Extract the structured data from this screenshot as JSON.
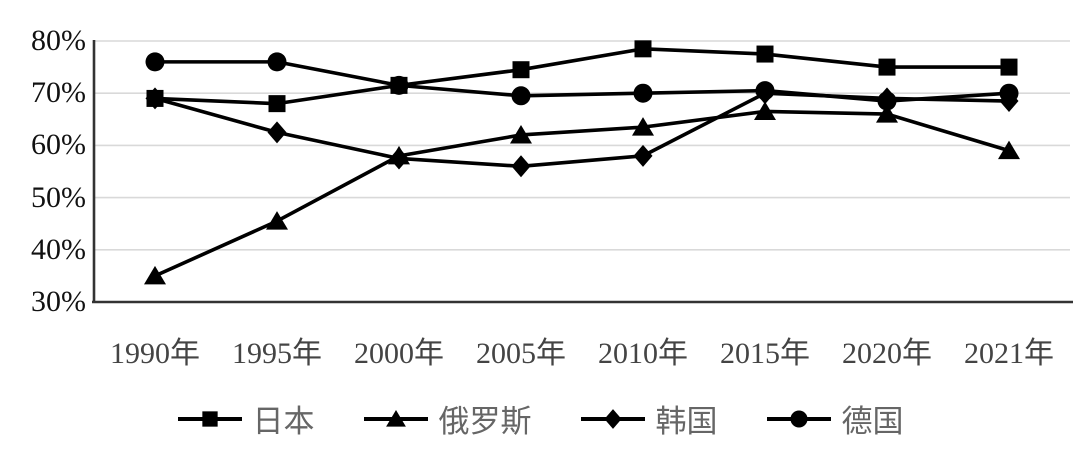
{
  "chart_data": {
    "type": "line",
    "categories": [
      "1990年",
      "1995年",
      "2000年",
      "2005年",
      "2010年",
      "2015年",
      "2020年",
      "2021年"
    ],
    "series": [
      {
        "key": "japan",
        "name": "日本",
        "marker": "square",
        "color": "#000000",
        "values": [
          69,
          68,
          71.5,
          74.5,
          78.5,
          77.5,
          75,
          75
        ]
      },
      {
        "key": "russia",
        "name": "俄罗斯",
        "marker": "triangle",
        "color": "#000000",
        "values": [
          35,
          45.5,
          58,
          62,
          63.5,
          66.5,
          66,
          59
        ]
      },
      {
        "key": "korea",
        "name": "韩国",
        "marker": "diamond",
        "color": "#000000",
        "values": [
          69,
          62.5,
          57.5,
          56,
          58,
          70,
          69,
          68.5
        ]
      },
      {
        "key": "germany",
        "name": "德国",
        "marker": "circle",
        "color": "#000000",
        "values": [
          76,
          76,
          71.5,
          69.5,
          70,
          70.5,
          68.5,
          70
        ]
      }
    ],
    "y_axis": {
      "ticks": [
        "80%",
        "70%",
        "60%",
        "50%",
        "40%",
        "30%"
      ],
      "tick_values": [
        80,
        70,
        60,
        50,
        40,
        30
      ],
      "min": 30,
      "max": 80,
      "unit": "%"
    },
    "title": "",
    "grid": true,
    "legend_position": "bottom"
  },
  "styles": {
    "background": "#ffffff",
    "line_color": "#000000",
    "grid_color": "#d9d9d9",
    "axis_color": "#333333",
    "y_label_color": "#111111",
    "x_label_color": "#444444",
    "legend_label_color": "#666666"
  }
}
